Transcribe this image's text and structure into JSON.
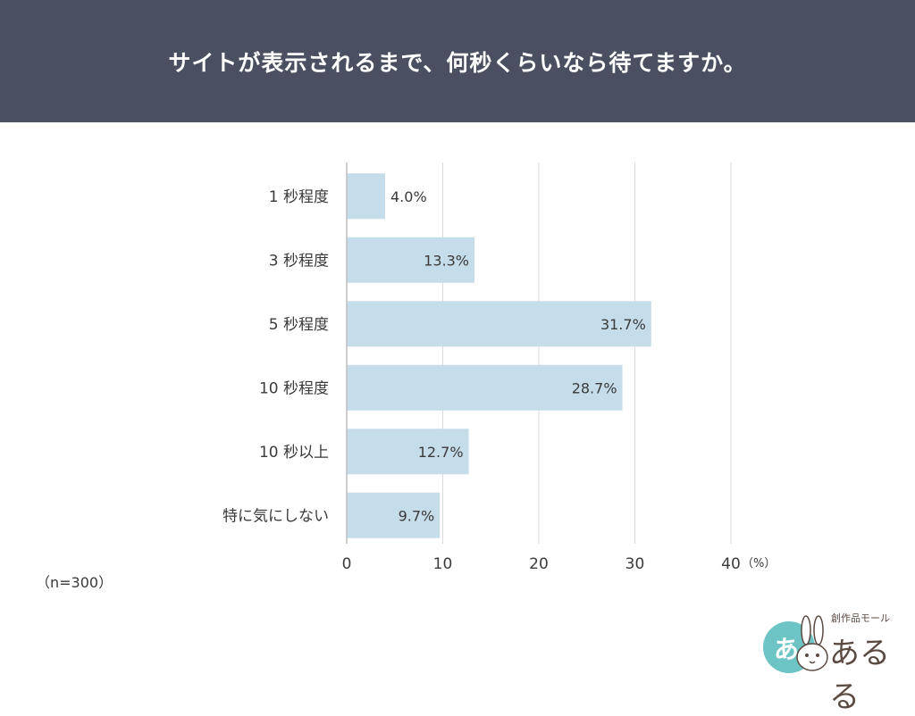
{
  "header": {
    "title": "サイトが表示されるまで、何秒くらいなら待てますか。"
  },
  "note": "（n=300）",
  "logo": {
    "small_text": "創作品モール",
    "main_text": "あるる",
    "circle_char": "あ"
  },
  "colors": {
    "header_bg": "#4a5061",
    "bar": "#c5dcea",
    "grid": "#d9d9d9",
    "text": "#3a3a3a",
    "logo_teal": "#6cc4c4"
  },
  "chart_data": {
    "type": "bar",
    "orientation": "horizontal",
    "categories": [
      "1 秒程度",
      "3 秒程度",
      "5 秒程度",
      "10 秒程度",
      "10 秒以上",
      "特に気にしない"
    ],
    "values": [
      4.0,
      13.3,
      31.7,
      28.7,
      12.7,
      9.7
    ],
    "value_labels": [
      "4.0%",
      "13.3%",
      "31.7%",
      "28.7%",
      "12.7%",
      "9.7%"
    ],
    "xlim": [
      0,
      40
    ],
    "xticks": [
      0,
      10,
      20,
      30,
      40
    ],
    "xtick_labels": [
      "0",
      "10",
      "20",
      "30",
      "40"
    ],
    "unit_label": "（%）",
    "grid": true
  }
}
